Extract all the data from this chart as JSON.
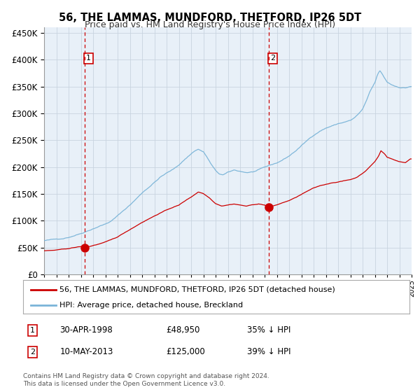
{
  "title": "56, THE LAMMAS, MUNDFORD, THETFORD, IP26 5DT",
  "subtitle": "Price paid vs. HM Land Registry's House Price Index (HPI)",
  "legend_line1": "56, THE LAMMAS, MUNDFORD, THETFORD, IP26 5DT (detached house)",
  "legend_line2": "HPI: Average price, detached house, Breckland",
  "marker1_date": "30-APR-1998",
  "marker1_price": 48950,
  "marker1_label": "35% ↓ HPI",
  "marker2_date": "10-MAY-2013",
  "marker2_price": 125000,
  "marker2_label": "39% ↓ HPI",
  "hpi_color": "#7ab4d8",
  "price_color": "#cc0000",
  "marker_color": "#cc0000",
  "plot_bg": "#e8f0f8",
  "grid_color": "#c8d4e0",
  "vline_color": "#cc0000",
  "footnote": "Contains HM Land Registry data © Crown copyright and database right 2024.\nThis data is licensed under the Open Government Licence v3.0.",
  "ylim": [
    0,
    460000
  ],
  "yticks": [
    0,
    50000,
    100000,
    150000,
    200000,
    250000,
    300000,
    350000,
    400000,
    450000
  ],
  "marker1_x": 1998.33,
  "marker2_x": 2013.37,
  "hpi_anchors_t": [
    1995.0,
    1995.5,
    1996.0,
    1996.5,
    1997.0,
    1997.5,
    1998.0,
    1998.5,
    1999.0,
    1999.5,
    2000.0,
    2000.5,
    2001.0,
    2001.5,
    2002.0,
    2002.5,
    2003.0,
    2003.5,
    2004.0,
    2004.5,
    2005.0,
    2005.5,
    2006.0,
    2006.5,
    2007.0,
    2007.3,
    2007.6,
    2008.0,
    2008.3,
    2008.6,
    2009.0,
    2009.3,
    2009.6,
    2010.0,
    2010.5,
    2011.0,
    2011.5,
    2012.0,
    2012.5,
    2013.0,
    2013.5,
    2014.0,
    2014.5,
    2015.0,
    2015.5,
    2016.0,
    2016.5,
    2017.0,
    2017.5,
    2018.0,
    2018.5,
    2019.0,
    2019.5,
    2020.0,
    2020.3,
    2020.6,
    2021.0,
    2021.3,
    2021.6,
    2022.0,
    2022.2,
    2022.4,
    2022.6,
    2022.8,
    2023.0,
    2023.3,
    2023.6,
    2024.0,
    2024.5,
    2024.9
  ],
  "hpi_anchors_v": [
    63000,
    64000,
    65000,
    67000,
    70000,
    74000,
    78000,
    83000,
    88000,
    93000,
    97000,
    103000,
    112000,
    122000,
    132000,
    143000,
    155000,
    165000,
    175000,
    185000,
    192000,
    198000,
    207000,
    218000,
    228000,
    234000,
    237000,
    232000,
    222000,
    210000,
    196000,
    190000,
    188000,
    192000,
    196000,
    194000,
    192000,
    193000,
    196000,
    200000,
    204000,
    208000,
    214000,
    221000,
    230000,
    240000,
    250000,
    260000,
    268000,
    274000,
    278000,
    282000,
    285000,
    288000,
    292000,
    298000,
    308000,
    322000,
    340000,
    356000,
    370000,
    378000,
    372000,
    364000,
    357000,
    353000,
    350000,
    348000,
    347000,
    350000
  ],
  "price_anchors_t": [
    1995.0,
    1995.5,
    1996.0,
    1996.5,
    1997.0,
    1997.5,
    1998.0,
    1998.33,
    1998.7,
    1999.0,
    1999.5,
    2000.0,
    2000.5,
    2001.0,
    2001.5,
    2002.0,
    2002.5,
    2003.0,
    2003.5,
    2004.0,
    2004.5,
    2005.0,
    2005.3,
    2005.6,
    2006.0,
    2006.5,
    2007.0,
    2007.3,
    2007.6,
    2008.0,
    2008.5,
    2009.0,
    2009.5,
    2010.0,
    2010.5,
    2011.0,
    2011.5,
    2012.0,
    2012.5,
    2013.0,
    2013.37,
    2013.7,
    2014.0,
    2014.5,
    2015.0,
    2015.5,
    2016.0,
    2016.5,
    2017.0,
    2017.5,
    2018.0,
    2018.5,
    2019.0,
    2019.5,
    2020.0,
    2020.5,
    2021.0,
    2021.5,
    2022.0,
    2022.3,
    2022.5,
    2022.8,
    2023.0,
    2023.5,
    2024.0,
    2024.5,
    2024.9
  ],
  "price_anchors_v": [
    44000,
    44500,
    45000,
    46000,
    47500,
    49500,
    51000,
    48950,
    51000,
    53000,
    56000,
    59000,
    63000,
    68000,
    75000,
    82000,
    89000,
    96000,
    102000,
    108000,
    114000,
    119000,
    122000,
    125000,
    128000,
    136000,
    143000,
    148000,
    153000,
    150000,
    142000,
    132000,
    128000,
    130000,
    132000,
    130000,
    128000,
    130000,
    132000,
    130000,
    125000,
    128000,
    130000,
    134000,
    138000,
    143000,
    149000,
    155000,
    160000,
    164000,
    167000,
    170000,
    172000,
    174000,
    176000,
    180000,
    188000,
    198000,
    210000,
    220000,
    230000,
    224000,
    218000,
    214000,
    210000,
    208000,
    215000
  ]
}
